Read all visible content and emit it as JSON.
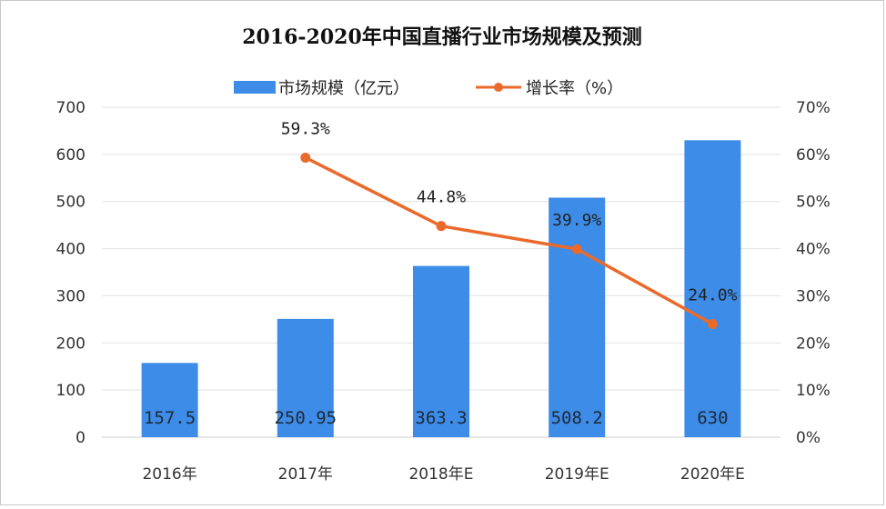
{
  "chart_data": {
    "type": "bar",
    "title": "2016-2020年中国直播行业市场规模及预测",
    "categories": [
      "2016年",
      "2017年",
      "2018年E",
      "2019年E",
      "2020年E"
    ],
    "series": [
      {
        "name": "市场规模（亿元）",
        "type": "bar",
        "axis": "left",
        "color": "#3d8ce8",
        "values": [
          157.5,
          250.95,
          363.3,
          508.2,
          630
        ],
        "labels": [
          "157.5",
          "250.95",
          "363.3",
          "508.2",
          "630"
        ]
      },
      {
        "name": "增长率（%）",
        "type": "line",
        "axis": "right",
        "color": "#ea6a2b",
        "values": [
          null,
          59.3,
          44.8,
          39.9,
          24.0
        ],
        "labels": [
          "",
          "59.3%",
          "44.8%",
          "39.9%",
          "24.0%"
        ]
      }
    ],
    "y_left": {
      "min": 0,
      "max": 700,
      "step": 100,
      "ticks": [
        "0",
        "100",
        "200",
        "300",
        "400",
        "500",
        "600",
        "700"
      ]
    },
    "y_right": {
      "min": 0,
      "max": 70,
      "step": 10,
      "ticks": [
        "0%",
        "10%",
        "20%",
        "30%",
        "40%",
        "50%",
        "60%",
        "70%"
      ]
    },
    "grid": true,
    "legend_position": "top"
  }
}
